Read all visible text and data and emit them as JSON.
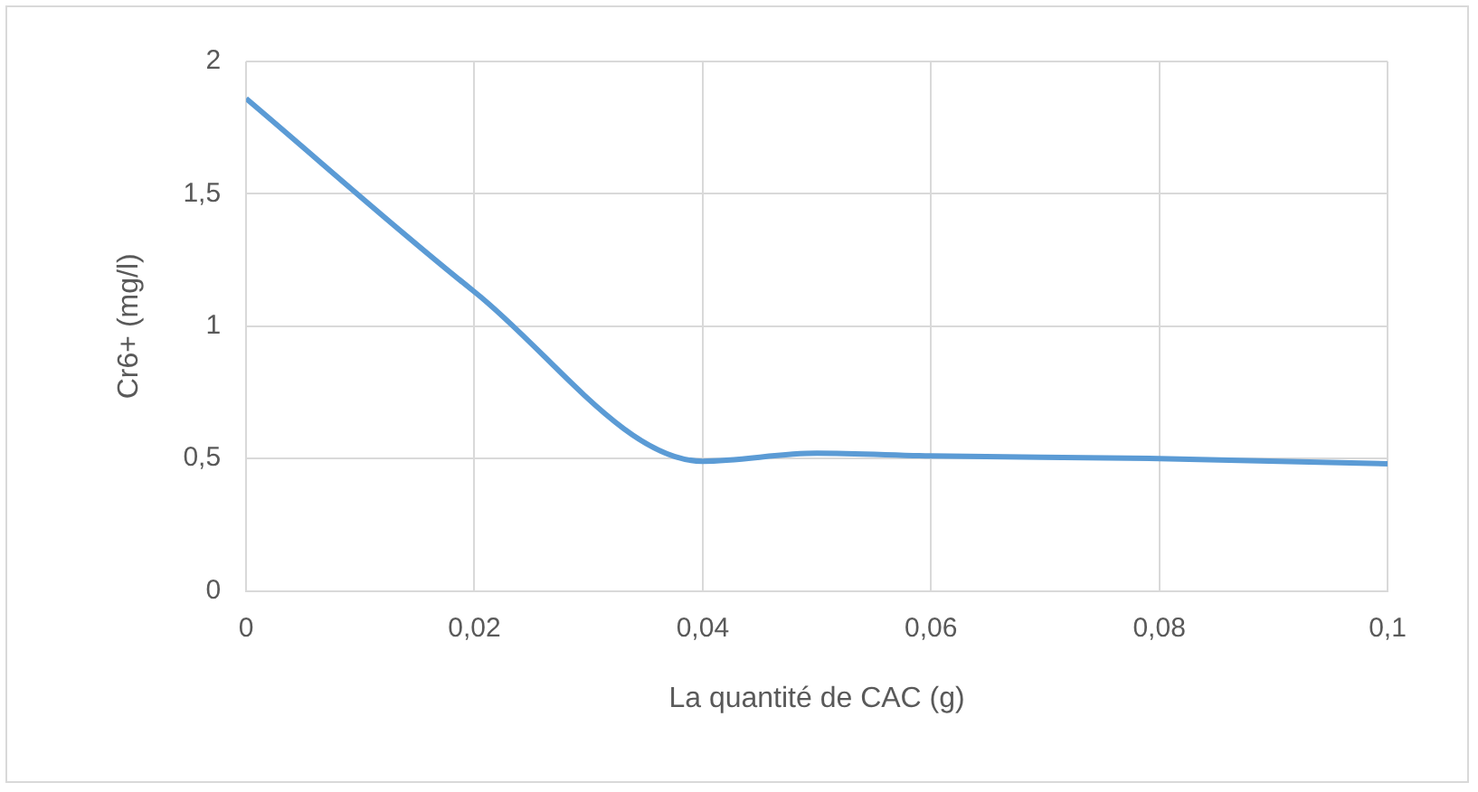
{
  "chart_data": {
    "type": "line",
    "xlabel": "La quantité de CAC (g)",
    "ylabel": "Cr6+ (mg/l)",
    "x": [
      0,
      0.02,
      0.04,
      0.05,
      0.06,
      0.08,
      0.1
    ],
    "series": [
      {
        "color": "#5b9bd5",
        "values": [
          1.86,
          1.13,
          0.49,
          0.52,
          0.51,
          0.5,
          0.48
        ]
      }
    ],
    "xlim": [
      0,
      0.1
    ],
    "xticks": [
      0,
      {
        "value": 0.02,
        "label": "0,02"
      },
      {
        "value": 0.04,
        "label": "0,04"
      },
      {
        "value": 0.06,
        "label": "0,06"
      },
      {
        "value": 0.08,
        "label": "0,08"
      },
      {
        "value": 0.1,
        "label": "0,1"
      }
    ],
    "ylim": [
      0,
      2
    ],
    "yticks": [
      0,
      {
        "value": 0.5,
        "label": "0,5"
      },
      1,
      {
        "value": 1.5,
        "label": "1,5"
      },
      2
    ],
    "grid": true,
    "marker": "none",
    "line_style": "solid"
  }
}
